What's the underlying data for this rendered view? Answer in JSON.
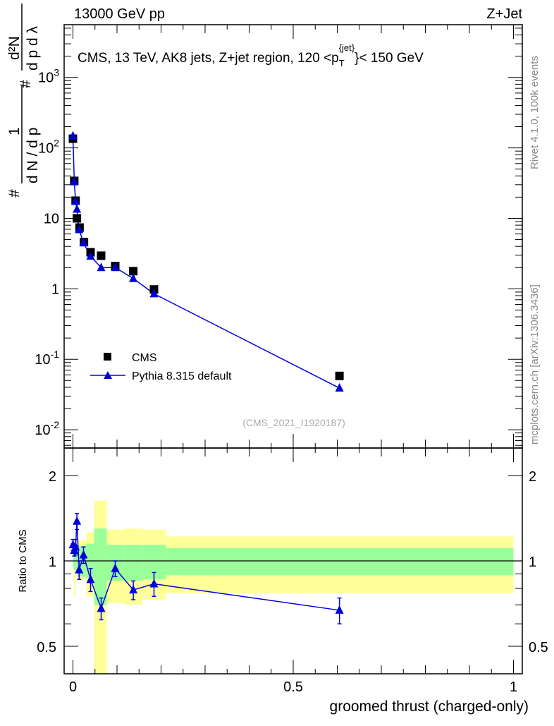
{
  "header": {
    "left": "13000 GeV pp",
    "right": "Z+Jet"
  },
  "side_labels": {
    "top": "Rivet 4.1.0,  100k events",
    "bottom": "mcplots.cern.ch [arXiv:1306.3436]"
  },
  "chart_data": [
    {
      "type": "scatter",
      "title": "CMS, 13 TeV, AK8 jets, Z+jet region, 120 <p_T^{jet}< 150 GeV",
      "title_parts": {
        "a": "CMS, 13 TeV, AK8 jets, Z+jet region, 120 <p",
        "sub": "T",
        "sup": "{jet}",
        "b": "}< 150 GeV"
      },
      "ylabel": "1/N dN/dp_T # d²N/dp_T dλ",
      "ylabel_parts": {
        "frac1_num": "1",
        "frac1_den": "d N / d p",
        "hash": "#",
        "frac2_num": "d²N",
        "frac2_den": "d p  d λ",
        "sub": "T"
      },
      "yscale": "log",
      "ylim": [
        0.0055,
        5600
      ],
      "xlim": [
        -0.02,
        1.02
      ],
      "yticks": [
        {
          "v": 0.01,
          "b": "10",
          "e": "-2"
        },
        {
          "v": 0.1,
          "b": "10",
          "e": "-1"
        },
        {
          "v": 1,
          "b": "1",
          "e": ""
        },
        {
          "v": 10,
          "b": "10",
          "e": ""
        },
        {
          "v": 100,
          "b": "10",
          "e": "2"
        },
        {
          "v": 1000,
          "b": "10",
          "e": "3"
        }
      ],
      "annotation": "(CMS_2021_I1920187)",
      "legend_position": "middle-left",
      "series": [
        {
          "name": "CMS",
          "marker": "square",
          "color": "#000000",
          "x": [
            0.0,
            0.003,
            0.006,
            0.009,
            0.015,
            0.025,
            0.04,
            0.064,
            0.096,
            0.137,
            0.184,
            0.605
          ],
          "y": [
            135,
            34,
            17.8,
            10,
            7.4,
            4.6,
            3.3,
            2.95,
            2.1,
            1.78,
            0.98,
            0.058
          ]
        },
        {
          "name": "Pythia 8.315 default",
          "marker": "triangle",
          "color": "#0000dd",
          "x": [
            0.0,
            0.003,
            0.006,
            0.009,
            0.014,
            0.024,
            0.04,
            0.064,
            0.096,
            0.137,
            0.184,
            0.605
          ],
          "y": [
            148,
            33,
            17.5,
            13.5,
            6.9,
            4.5,
            2.9,
            2.0,
            2.0,
            1.4,
            0.85,
            0.039
          ]
        }
      ]
    },
    {
      "type": "scatter",
      "ylabel": "Ratio to CMS",
      "xlabel": "groomed thrust (charged-only)",
      "yscale": "log",
      "ylim": [
        0.4,
        2.5
      ],
      "xlim": [
        -0.02,
        1.02
      ],
      "yticks": [
        {
          "v": 0.5,
          "label": "0.5"
        },
        {
          "v": 1,
          "label": "1"
        },
        {
          "v": 2,
          "label": "2"
        }
      ],
      "xticks": [
        {
          "v": 0,
          "label": "0"
        },
        {
          "v": 0.5,
          "label": "0.5"
        },
        {
          "v": 1,
          "label": "1"
        }
      ],
      "bands": [
        {
          "x0": 0.0,
          "x1": 0.002,
          "stat": [
            0.94,
            1.06
          ],
          "total": [
            0.9,
            1.1
          ]
        },
        {
          "x0": 0.002,
          "x1": 0.006,
          "stat": [
            0.93,
            1.08
          ],
          "total": [
            0.75,
            1.12
          ]
        },
        {
          "x0": 0.006,
          "x1": 0.011,
          "stat": [
            0.9,
            1.12
          ],
          "total": [
            0.88,
            1.16
          ]
        },
        {
          "x0": 0.011,
          "x1": 0.03,
          "stat": [
            0.88,
            1.13
          ],
          "total": [
            0.86,
            1.18
          ]
        },
        {
          "x0": 0.03,
          "x1": 0.048,
          "stat": [
            0.87,
            1.15
          ],
          "total": [
            0.75,
            1.26
          ]
        },
        {
          "x0": 0.048,
          "x1": 0.077,
          "stat": [
            0.7,
            1.3
          ],
          "total": [
            0.4,
            1.63
          ]
        },
        {
          "x0": 0.077,
          "x1": 0.115,
          "stat": [
            0.85,
            1.14
          ],
          "total": [
            0.71,
            1.29
          ]
        },
        {
          "x0": 0.115,
          "x1": 0.158,
          "stat": [
            0.85,
            1.14
          ],
          "total": [
            0.7,
            1.3
          ]
        },
        {
          "x0": 0.158,
          "x1": 0.211,
          "stat": [
            0.86,
            1.14
          ],
          "total": [
            0.73,
            1.29
          ]
        },
        {
          "x0": 0.211,
          "x1": 1.0,
          "stat": [
            0.89,
            1.11
          ],
          "total": [
            0.77,
            1.22
          ]
        }
      ],
      "series": [
        {
          "name": "Pythia 8.315 default / CMS",
          "color": "#0000dd",
          "x": [
            0.0,
            0.003,
            0.006,
            0.009,
            0.014,
            0.024,
            0.04,
            0.064,
            0.096,
            0.137,
            0.184,
            0.605
          ],
          "y": [
            1.14,
            1.09,
            1.12,
            1.38,
            0.93,
            1.05,
            0.86,
            0.68,
            0.94,
            0.79,
            0.83,
            0.67
          ],
          "err": [
            0.05,
            0.05,
            0.07,
            0.09,
            0.07,
            0.07,
            0.08,
            0.06,
            0.06,
            0.06,
            0.08,
            0.07
          ]
        }
      ]
    }
  ],
  "colors": {
    "stat_band": "#99ff99",
    "total_band": "#ffff99",
    "mc": "#0000dd",
    "data": "#000000",
    "side_text": "#888888"
  }
}
